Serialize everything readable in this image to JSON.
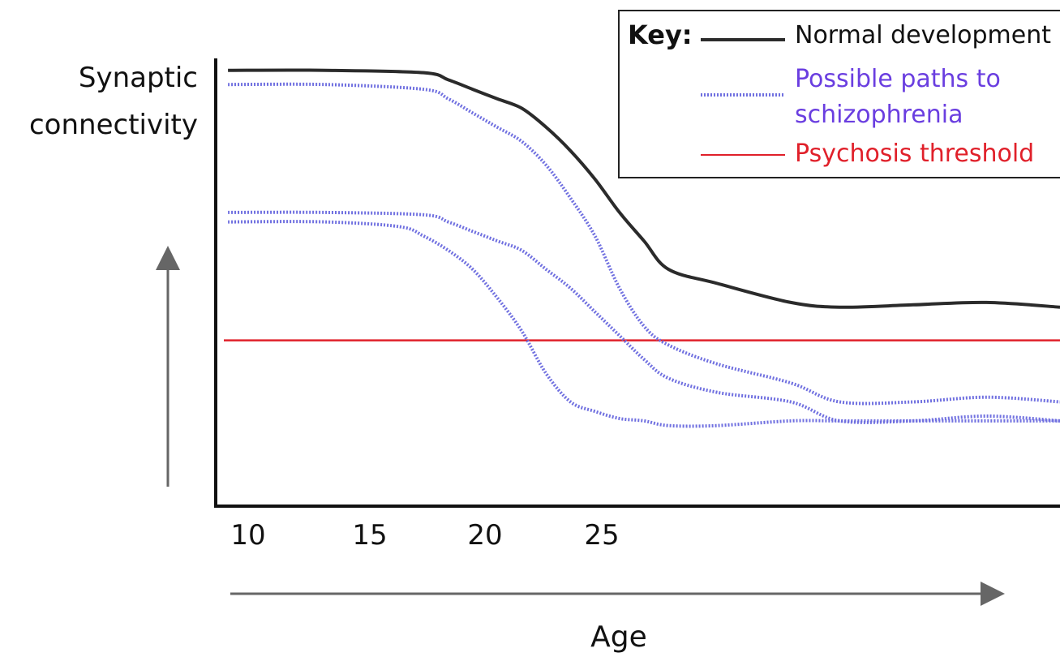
{
  "chart_data": {
    "type": "line",
    "ylabel_lines": [
      "Synaptic",
      "connectivity"
    ],
    "xlabel": "Age",
    "xticks": [
      "10",
      "15",
      "20",
      "25"
    ],
    "xlim": [
      9.5,
      44
    ],
    "ylim": [
      0,
      100
    ],
    "grid": false,
    "legend": {
      "placement": "top-right",
      "title": "Key:",
      "entries": [
        {
          "label": "Normal development",
          "style": "solid",
          "color": "#2b2b2b"
        },
        {
          "label_lines": [
            "Possible paths to",
            "schizophrenia"
          ],
          "style": "dotted",
          "color": "#7070e0"
        },
        {
          "label": "Psychosis threshold",
          "style": "solid",
          "color": "#e0202a"
        }
      ]
    },
    "threshold": {
      "name": "Psychosis threshold",
      "y": 35,
      "color": "#e0202a"
    },
    "normal": {
      "name": "Normal development",
      "color": "#2b2b2b",
      "x": [
        10,
        14,
        18,
        19,
        20,
        21,
        22,
        23,
        24,
        25,
        26,
        27,
        28,
        30,
        33,
        35,
        38,
        41,
        44
      ],
      "y": [
        92,
        92,
        91.5,
        90,
        88,
        86,
        84,
        80,
        75,
        69,
        62,
        56,
        50,
        47,
        43,
        42,
        42.5,
        43,
        42
      ]
    },
    "paths": [
      {
        "name": "path-1",
        "color": "#7070e0",
        "x": [
          10,
          14,
          18,
          19,
          20,
          21,
          22,
          23,
          24,
          25,
          26,
          27,
          28,
          30,
          33,
          35,
          38,
          41,
          44
        ],
        "y": [
          89,
          89,
          88,
          86,
          83,
          80,
          77,
          72,
          65,
          57,
          46,
          38,
          34,
          30,
          26,
          22,
          22,
          23,
          22
        ]
      },
      {
        "name": "path-2",
        "color": "#7070e0",
        "x": [
          10,
          14,
          18,
          19,
          20,
          21,
          22,
          23,
          24,
          25,
          26,
          27,
          28,
          30,
          33,
          35,
          38,
          41,
          44
        ],
        "y": [
          62,
          62,
          61.5,
          60,
          58,
          56,
          54,
          50,
          46,
          41,
          36,
          31,
          27,
          24,
          22,
          18,
          18,
          19,
          18
        ]
      },
      {
        "name": "path-3",
        "color": "#7070e0",
        "x": [
          10,
          14,
          17,
          18,
          19,
          20,
          21,
          22,
          23,
          24,
          25,
          26,
          27,
          28,
          30,
          33,
          35,
          38,
          41,
          44
        ],
        "y": [
          60,
          60,
          59,
          57,
          54,
          50,
          44,
          37,
          28,
          22,
          20,
          18.5,
          18,
          17,
          17,
          18,
          18,
          18,
          18,
          18
        ]
      }
    ]
  }
}
